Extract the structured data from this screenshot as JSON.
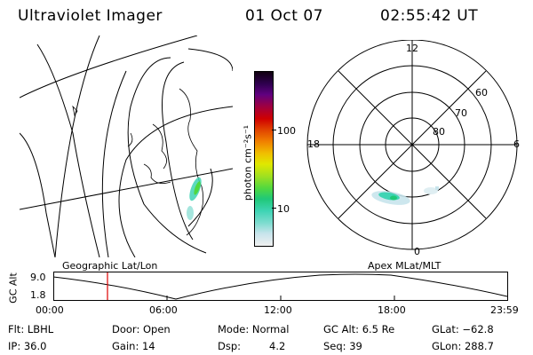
{
  "header": {
    "title": "Ultraviolet Imager",
    "date": "01 Oct 07",
    "time": "02:55:42 UT"
  },
  "colorbar": {
    "unit_label": "photon cm⁻²s⁻¹",
    "tick_100": "100",
    "tick_10": "10",
    "colors": [
      "#f0f0f0",
      "#c8e4ec",
      "#7fdcd0",
      "#3fd4b4",
      "#20c878",
      "#50d840",
      "#a0e020",
      "#e0e800",
      "#f0c000",
      "#f08000",
      "#e04000",
      "#d00000",
      "#a00040",
      "#600080",
      "#300050",
      "#100010"
    ]
  },
  "polar": {
    "mlt_labels": {
      "top": "12",
      "left": "18",
      "right": "6",
      "bottom": "0"
    },
    "lat_labels": [
      "60",
      "70",
      "80"
    ]
  },
  "timeline": {
    "left_title": "Geographic Lat/Lon",
    "right_title": "Apex MLat/MLT",
    "axis_label": "GC Alt",
    "y_top": "9.0",
    "y_bottom": "1.8",
    "x_ticks": [
      "00:00",
      "06:00",
      "12:00",
      "18:00",
      "23:59"
    ],
    "marker_color": "#dd0000"
  },
  "footer": {
    "row1": {
      "flt": "Flt: LBHL",
      "door": "Door: Open",
      "mode": "Mode: Normal",
      "gcalt": "GC Alt: 6.5 Re",
      "glat": "GLat: −62.8"
    },
    "row2": {
      "ip": "IP: 36.0",
      "gain": "Gain: 14",
      "dsp_label": "Dsp:",
      "dsp_value": "4.2",
      "seq": "Seq: 39",
      "glon": "GLon: 288.7"
    }
  }
}
